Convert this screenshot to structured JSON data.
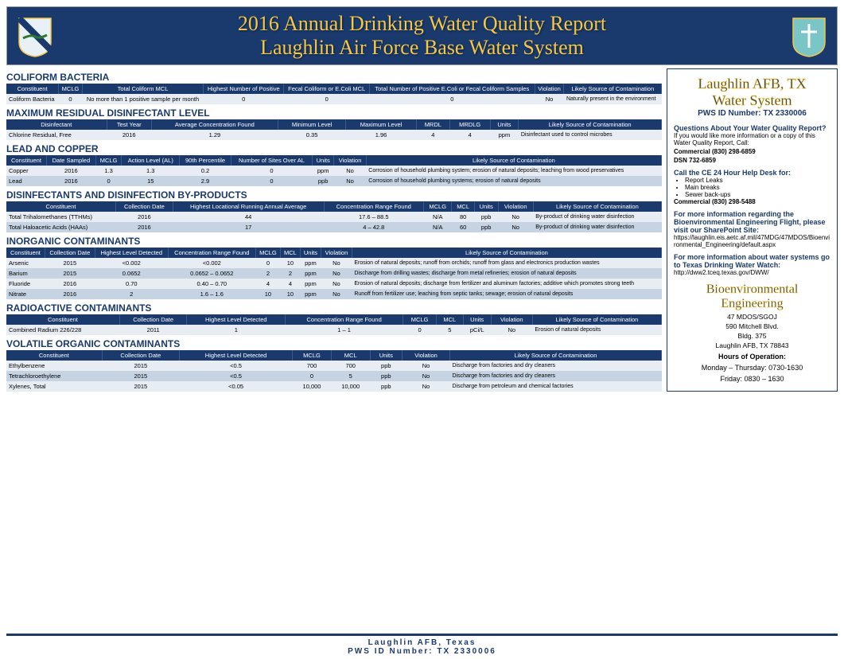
{
  "colors": {
    "navy": "#1a3a6e",
    "gold": "#f5c842",
    "row0": "#e8edf3",
    "row1": "#c5d3e3"
  },
  "header": {
    "t1": "2016 Annual Drinking Water Quality Report",
    "t2": "Laughlin Air Force Base Water System",
    "left_shield": "47th Flying Training Wing",
    "right_shield": "47th Medical Group"
  },
  "sections": [
    {
      "title": "COLIFORM BACTERIA",
      "cols": [
        "Constituent",
        "MCLG",
        "Total Coliform MCL",
        "Highest Number of Positive",
        "Fecal Coliform or E.Coli MCL",
        "Total Number of Positive E.Coli or Fecal Coliform Samples",
        "Violation",
        "Likely Source of Contamination"
      ],
      "rows": [
        [
          "Coliform Bacteria",
          "0",
          "No more than 1 positive sample per month",
          "0",
          "0",
          "0",
          "No",
          "Naturally present in the environment"
        ]
      ]
    },
    {
      "title": "MAXIMUM RESIDUAL DISINFECTANT LEVEL",
      "cols": [
        "Disinfectant",
        "Test Year",
        "Average Concentration Found",
        "Minimum Level",
        "Maximum Level",
        "MRDL",
        "MRDLG",
        "Units",
        "Likely Source of Contamination"
      ],
      "rows": [
        [
          "Chlorine Residual, Free",
          "2016",
          "1.29",
          "0.35",
          "1.96",
          "4",
          "4",
          "ppm",
          "Disinfectant used to control microbes"
        ]
      ]
    },
    {
      "title": "LEAD AND COPPER",
      "cols": [
        "Constituent",
        "Date Sampled",
        "MCLG",
        "Action Level (AL)",
        "90th Percentile",
        "Number of Sites Over AL",
        "Units",
        "Violation",
        "Likely Source of Contamination"
      ],
      "rows": [
        [
          "Copper",
          "2016",
          "1.3",
          "1.3",
          "0.2",
          "0",
          "ppm",
          "No",
          "Corrosion of household plumbing system; erosion of natural deposits; leaching from wood preservatives"
        ],
        [
          "Lead",
          "2016",
          "0",
          "15",
          "2.9",
          "0",
          "ppb",
          "No",
          "Corrosion of household plumbing systems; erosion of natural deposits"
        ]
      ]
    },
    {
      "title": "DISINFECTANTS AND DISINFECTION BY-PRODUCTS",
      "cols": [
        "Constituent",
        "Collection Date",
        "Highest Locational Running Annual Average",
        "Concentration Range Found",
        "MCLG",
        "MCL",
        "Units",
        "Violation",
        "Likely Source of Contamination"
      ],
      "rows": [
        [
          "Total Trihalomethanes (TTHMs)",
          "2016",
          "44",
          "17.6 – 88.5",
          "N/A",
          "80",
          "ppb",
          "No",
          "By-product of drinking water disinfection"
        ],
        [
          "Total Haloacetic Acids (HAAs)",
          "2016",
          "17",
          "4 – 42.8",
          "N/A",
          "60",
          "ppb",
          "No",
          "By-product of drinking water disinfection"
        ]
      ]
    },
    {
      "title": "INORGANIC CONTAMINANTS",
      "cols": [
        "Constituent",
        "Collection Date",
        "Highest Level Detected",
        "Concentration Range Found",
        "MCLG",
        "MCL",
        "Units",
        "Violation",
        "Likely Source of Contamination"
      ],
      "rows": [
        [
          "Arsenic",
          "2015",
          "<0.002",
          "<0.002",
          "0",
          "10",
          "ppm",
          "No",
          "Erosion of natural deposits; runoff from orchids; runoff from glass and electronics production wastes"
        ],
        [
          "Barium",
          "2015",
          "0.0652",
          "0.0652 – 0.0652",
          "2",
          "2",
          "ppm",
          "No",
          "Discharge from drilling wastes; discharge from metal refineries; erosion of natural deposits"
        ],
        [
          "Fluoride",
          "2016",
          "0.70",
          "0.40 – 0.70",
          "4",
          "4",
          "ppm",
          "No",
          "Erosion of natural deposits; discharge from fertilizer and aluminum factories; additive which promotes strong teeth"
        ],
        [
          "Nitrate",
          "2016",
          "2",
          "1.6 – 1.6",
          "10",
          "10",
          "ppm",
          "No",
          "Runoff from fertilizer use; leaching from septic tanks; sewage; erosion of natural deposits"
        ]
      ]
    },
    {
      "title": "RADIOACTIVE CONTAMINANTS",
      "cols": [
        "Constituent",
        "Collection Date",
        "Highest Level Detected",
        "Concentration Range Found",
        "MCLG",
        "MCL",
        "Units",
        "Violation",
        "Likely Source of Contamination"
      ],
      "rows": [
        [
          "Combined Radium 226/228",
          "2011",
          "1",
          "1 – 1",
          "0",
          "5",
          "pCi/L",
          "No",
          "Erosion of natural deposits"
        ]
      ]
    },
    {
      "title": "VOLATILE ORGANIC CONTAMINANTS",
      "cols": [
        "Constituent",
        "Collection Date",
        "Highest Level Detected",
        "MCLG",
        "MCL",
        "Units",
        "Violation",
        "Likely Source of Contamination"
      ],
      "rows": [
        [
          "Ethylbenzene",
          "2015",
          "<0.5",
          "700",
          "700",
          "ppb",
          "No",
          "Discharge from factories and dry cleaners"
        ],
        [
          "Tetrachloroethylene",
          "2015",
          "<0.5",
          "0",
          "5",
          "ppb",
          "No",
          "Discharge from factories and dry cleaners"
        ],
        [
          "Xylenes, Total",
          "2015",
          "<0.05",
          "10,000",
          "10,000",
          "ppb",
          "No",
          "Discharge from petroleum and chemical factories"
        ]
      ]
    }
  ],
  "sidebar": {
    "t1": "Laughlin AFB, TX",
    "t2": "Water System",
    "pws": "PWS ID Number: TX 2330006",
    "q_h": "Questions About Your Water Quality Report?",
    "q_p": "If you would like more information or a copy of this Water Quality Report, Call:",
    "q_c": "Commercial (830) 298-6859",
    "q_d": "DSN 732-6859",
    "ce_h": "Call the CE 24 Hour Help Desk for:",
    "ce_items": [
      "Report Leaks",
      "Main breaks",
      "Sewer back-ups"
    ],
    "ce_c": "Commercial (830) 298-5488",
    "sp_h": "For more information regarding the Bioenvironmental Engineering Flight, please visit our SharePoint Site:",
    "sp_url": "https://laughlin.eis.aetc.af.mil/47MDG/47MDOS/Bioenvironmental_Engineering/default.aspx",
    "tx_h": "For more information about water systems go to Texas Drinking Water Watch:",
    "tx_url": "http://dww2.tceq.texas.gov/DWW/",
    "bio": "Bioenvironmental Engineering",
    "addr": [
      "47 MDOS/SGOJ",
      "590 Mitchell Blvd.",
      "Bldg. 375",
      "Laughlin AFB, TX 78843"
    ],
    "hours_h": "Hours of Operation:",
    "hours": [
      "Monday – Thursday:  0730-1630",
      "Friday:  0830 – 1630"
    ]
  },
  "footer": {
    "l1": "Laughlin AFB, Texas",
    "l2": "PWS ID Number: TX 2330006"
  }
}
